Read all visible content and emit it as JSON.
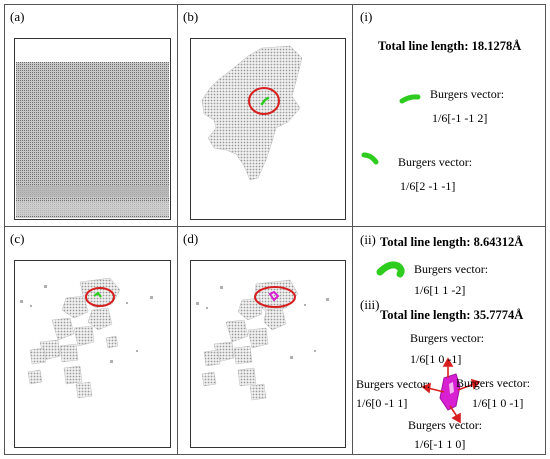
{
  "panels": {
    "a": {
      "label": "(a)"
    },
    "b": {
      "label": "(b)"
    },
    "c": {
      "label": "(c)"
    },
    "d": {
      "label": "(d)"
    }
  },
  "panel_i": {
    "label": "(i)",
    "total_line": "Total line length: 18.1278Å",
    "bv1_title": "Burgers vector:",
    "bv1_value": "1/6[-1 -1 2]",
    "bv2_title": "Burgers vector:",
    "bv2_value": "1/6[2 -1 -1]"
  },
  "panel_ii": {
    "label": "(ii)",
    "total_line": "Total line length: 8.64312Å",
    "bv_title": "Burgers vector:",
    "bv_value": "1/6[1 1 -2]"
  },
  "panel_iii": {
    "label": "(iii)",
    "total_line": "Total line length: 35.7774Å",
    "bv_top_title": "Burgers vector:",
    "bv_top_value": "1/6[1 0 -1]",
    "bv_left_title": "Burgers vector:",
    "bv_left_value": "1/6[0 -1 1]",
    "bv_right_title": "Burgers vector:",
    "bv_right_value": "1/6[1 0 -1]",
    "bv_bottom_title": "Burgers vector:",
    "bv_bottom_value": "1/6[-1 1 0]"
  },
  "colors": {
    "dislocation_green": "#2ecc1f",
    "dislocation_magenta": "#d81fd1",
    "highlight_red": "#d81f1f",
    "atom_gray": "#9a9a9a"
  }
}
